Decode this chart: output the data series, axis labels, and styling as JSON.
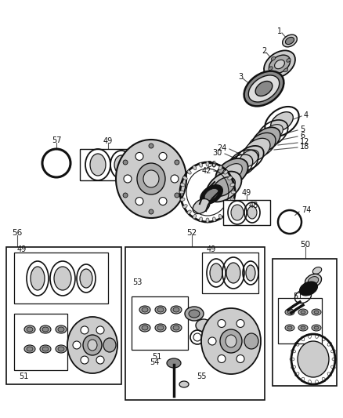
{
  "bg_color": "#ffffff",
  "lc": "#333333",
  "gray1": "#aaaaaa",
  "gray2": "#cccccc",
  "gray3": "#888888",
  "gray4": "#555555",
  "darkgray": "#444444",
  "black": "#111111"
}
